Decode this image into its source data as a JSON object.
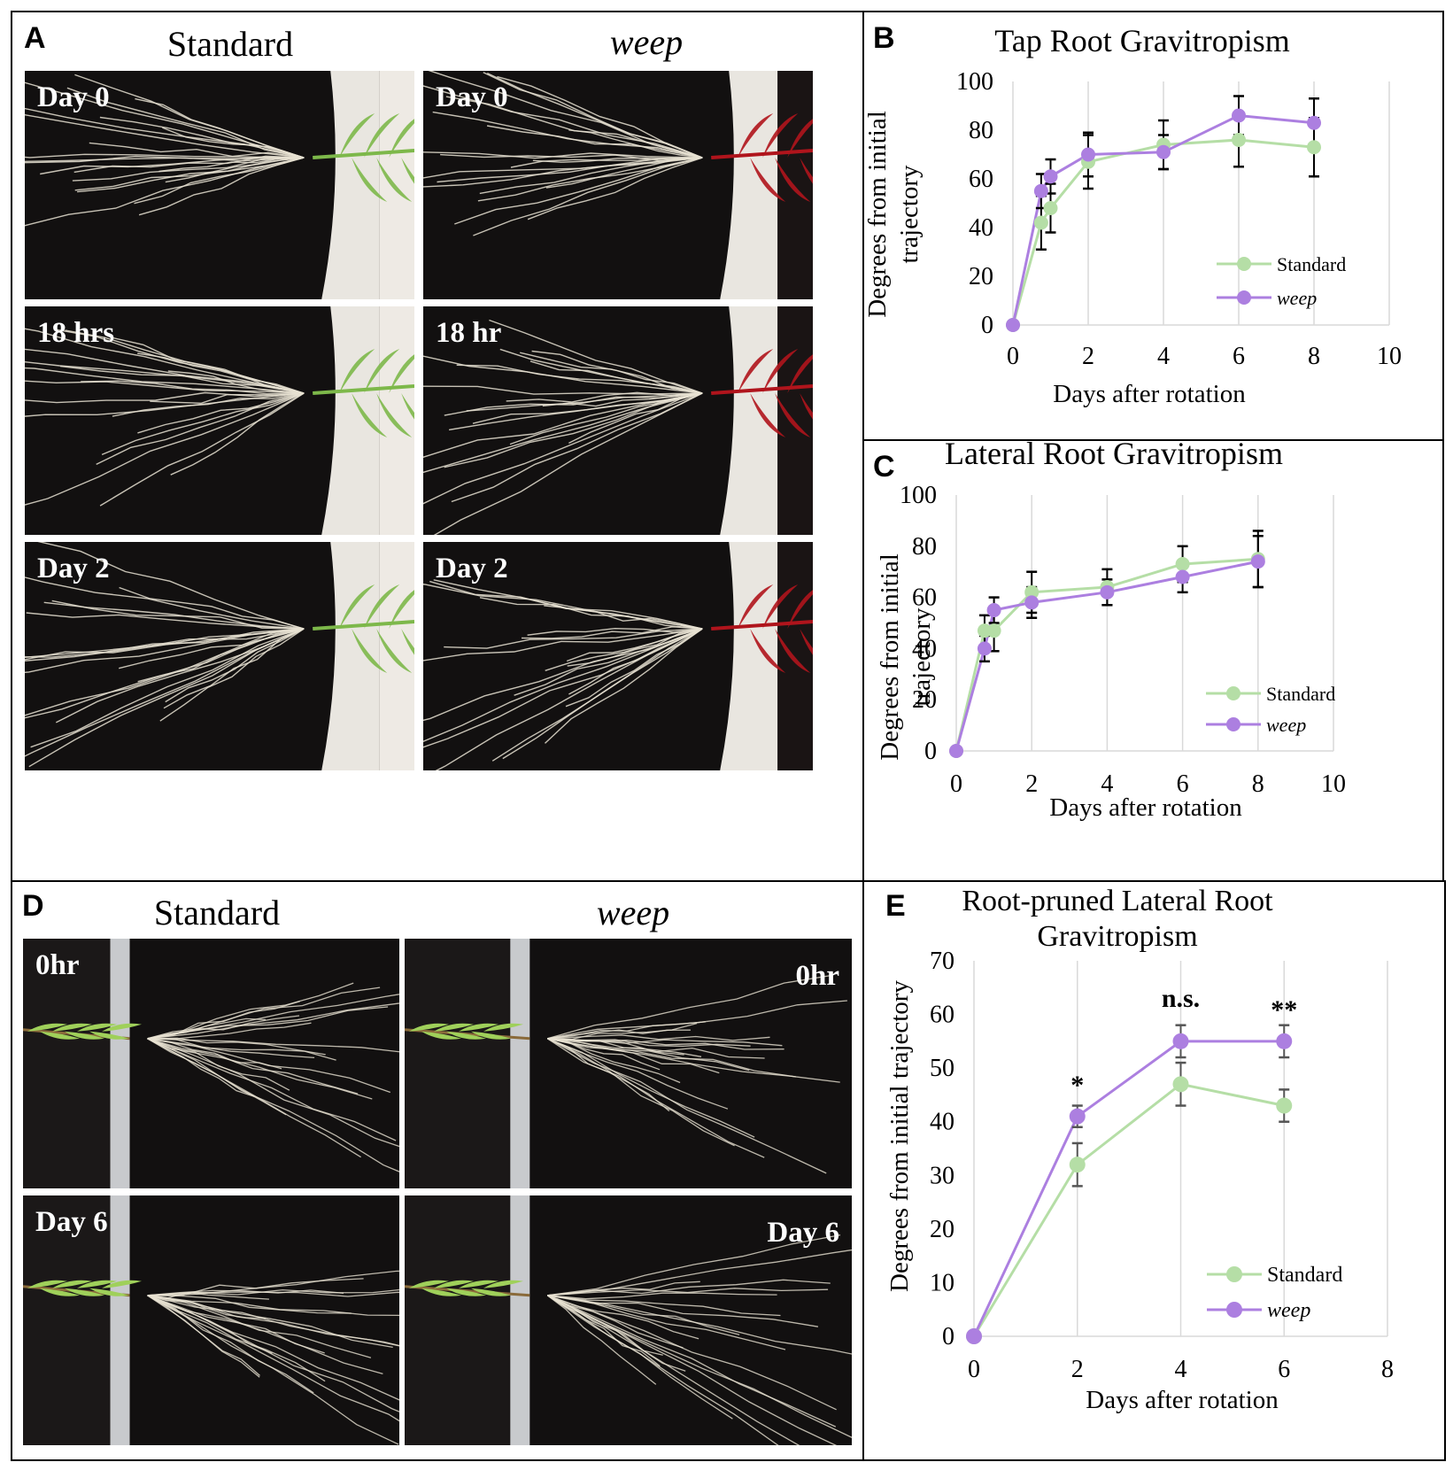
{
  "panelA": {
    "letter": "A",
    "col_standard": "Standard",
    "col_weep": "weep",
    "rows": [
      {
        "standard_label": "Day 0",
        "weep_label": "Day 0"
      },
      {
        "standard_label": "18 hrs",
        "weep_label": "18 hr"
      },
      {
        "standard_label": "Day 2",
        "weep_label": "Day 2"
      }
    ]
  },
  "panelD": {
    "letter": "D",
    "col_standard": "Standard",
    "col_weep": "weep",
    "rows": [
      {
        "standard_label": "0hr",
        "weep_label": "0hr"
      },
      {
        "standard_label": "Day 6",
        "weep_label": "Day 6"
      }
    ]
  },
  "colors": {
    "standard": "#b5dea6",
    "weep": "#ac7fe0",
    "soil": "#121010",
    "root": "#e8e2d2",
    "standard_leaf": "#7db84a",
    "weep_leaf": "#b0141c"
  },
  "chart_data": [
    {
      "panel": "B",
      "type": "line",
      "title": "Tap Root Gravitropism",
      "xlabel": "Days after rotation",
      "ylabel": [
        "Degrees from initial",
        "trajectory"
      ],
      "xlim": [
        0,
        10
      ],
      "ylim": [
        0,
        100
      ],
      "xticks": [
        0,
        2,
        4,
        6,
        8,
        10
      ],
      "yticks": [
        0,
        20,
        40,
        60,
        80,
        100
      ],
      "grid": "vertical",
      "legend": "bottom-right",
      "series": [
        {
          "name": "Standard",
          "italic": false,
          "color": "#b5dea6",
          "x": [
            0,
            0.75,
            1,
            2,
            4,
            6,
            8
          ],
          "y": [
            0,
            42,
            48,
            67,
            74,
            76,
            73
          ],
          "err": [
            0,
            11,
            10,
            11,
            10,
            11,
            12
          ]
        },
        {
          "name": "weep",
          "italic": true,
          "color": "#ac7fe0",
          "x": [
            0,
            0.75,
            1,
            2,
            4,
            6,
            8
          ],
          "y": [
            0,
            55,
            61,
            70,
            71,
            86,
            83
          ],
          "err": [
            0,
            7,
            7,
            9,
            7,
            8,
            10
          ]
        }
      ],
      "annotations": []
    },
    {
      "panel": "C",
      "type": "line",
      "title": "Lateral Root Gravitropism",
      "xlabel": "Days after rotation",
      "ylabel": [
        "Degrees from initial",
        "trajectory"
      ],
      "xlim": [
        0,
        10
      ],
      "ylim": [
        0,
        100
      ],
      "xticks": [
        0,
        2,
        4,
        6,
        8,
        10
      ],
      "yticks": [
        0,
        20,
        40,
        60,
        80,
        100
      ],
      "grid": "vertical",
      "legend": "bottom-right",
      "series": [
        {
          "name": "Standard",
          "italic": false,
          "color": "#b5dea6",
          "x": [
            0,
            0.75,
            1,
            2,
            4,
            6,
            8
          ],
          "y": [
            0,
            47,
            47,
            62,
            64,
            73,
            75
          ],
          "err": [
            0,
            6,
            8,
            8,
            7,
            7,
            11
          ]
        },
        {
          "name": "weep",
          "italic": true,
          "color": "#ac7fe0",
          "x": [
            0,
            0.75,
            1,
            2,
            4,
            6,
            8
          ],
          "y": [
            0,
            40,
            55,
            58,
            62,
            68,
            74
          ],
          "err": [
            0,
            5,
            5,
            6,
            5,
            6,
            10
          ]
        }
      ],
      "annotations": []
    },
    {
      "panel": "E",
      "type": "line",
      "title": [
        "Root-pruned Lateral Root",
        "Gravitropism"
      ],
      "xlabel": "Days after rotation",
      "ylabel": [
        "Degrees from initial trajectory"
      ],
      "xlim": [
        0,
        8
      ],
      "ylim": [
        0,
        70
      ],
      "xticks": [
        0,
        2,
        4,
        6,
        8
      ],
      "yticks": [
        0,
        10,
        20,
        30,
        40,
        50,
        60,
        70
      ],
      "grid": "vertical",
      "legend": "bottom-right",
      "series": [
        {
          "name": "Standard",
          "italic": false,
          "color": "#b5dea6",
          "x": [
            0,
            2,
            4,
            6
          ],
          "y": [
            0,
            32,
            47,
            43
          ],
          "err": [
            0,
            4,
            4,
            3
          ]
        },
        {
          "name": "weep",
          "italic": true,
          "color": "#ac7fe0",
          "x": [
            0,
            2,
            4,
            6
          ],
          "y": [
            0,
            41,
            55,
            55
          ],
          "err": [
            0,
            2,
            3,
            3
          ]
        }
      ],
      "annotations": [
        {
          "x": 2,
          "text": "*"
        },
        {
          "x": 4,
          "text": "n.s."
        },
        {
          "x": 6,
          "text": "**"
        }
      ]
    }
  ]
}
